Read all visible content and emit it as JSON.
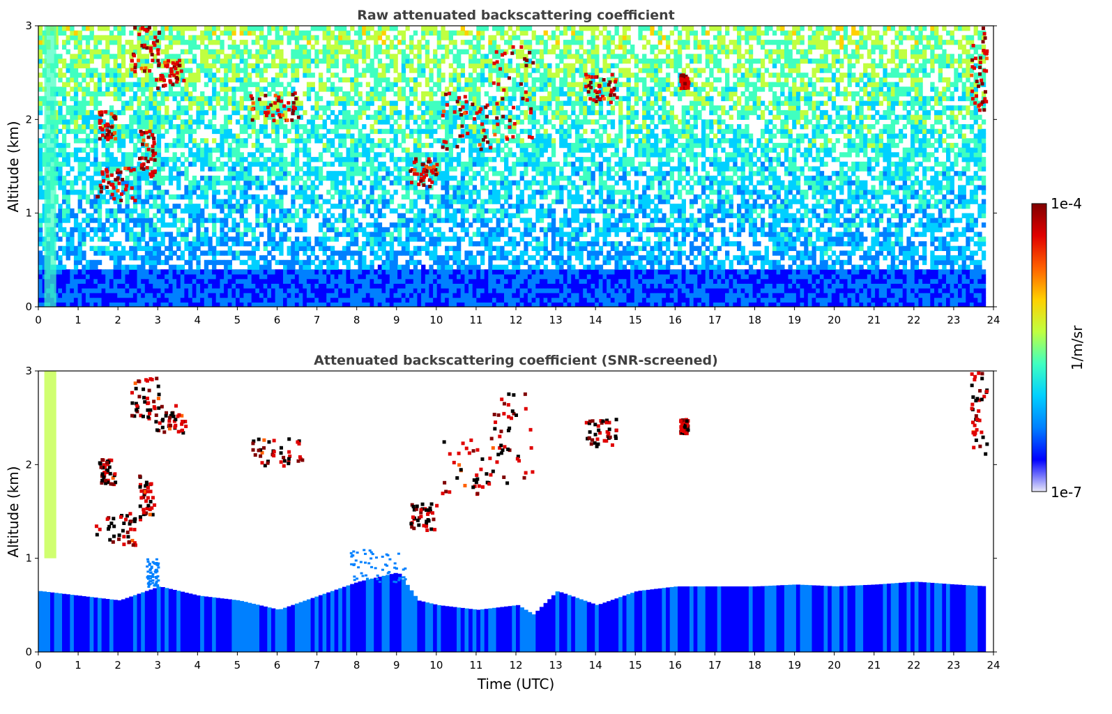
{
  "chart_data": [
    {
      "type": "heatmap",
      "title": "Raw attenuated backscattering coefficient",
      "xlabel": "",
      "ylabel": "Altitude (km)",
      "xlim": [
        0,
        24
      ],
      "ylim": [
        0,
        3
      ],
      "xticks": [
        "0",
        "1",
        "2",
        "3",
        "4",
        "5",
        "6",
        "7",
        "8",
        "9",
        "10",
        "11",
        "12",
        "13",
        "14",
        "15",
        "16",
        "17",
        "18",
        "19",
        "20",
        "21",
        "22",
        "23",
        "24"
      ],
      "yticks": [
        "0",
        "1",
        "2",
        "3"
      ],
      "data_end_hour": 23.8,
      "boundary_layer_top_km": 0.4,
      "cloud_regions": [
        {
          "t": [
            1.4,
            2.4
          ],
          "z": [
            1.15,
            1.5
          ]
        },
        {
          "t": [
            1.5,
            1.9
          ],
          "z": [
            1.8,
            2.1
          ]
        },
        {
          "t": [
            2.3,
            3.0
          ],
          "z": [
            2.5,
            3.0
          ]
        },
        {
          "t": [
            2.9,
            3.7
          ],
          "z": [
            2.35,
            2.65
          ]
        },
        {
          "t": [
            2.5,
            2.9
          ],
          "z": [
            1.4,
            1.9
          ]
        },
        {
          "t": [
            5.3,
            6.6
          ],
          "z": [
            2.0,
            2.3
          ]
        },
        {
          "t": [
            9.3,
            10.0
          ],
          "z": [
            1.3,
            1.6
          ]
        },
        {
          "t": [
            10.1,
            11.4
          ],
          "z": [
            1.7,
            2.3
          ]
        },
        {
          "t": [
            11.4,
            12.4
          ],
          "z": [
            1.8,
            2.8
          ]
        },
        {
          "t": [
            13.7,
            14.5
          ],
          "z": [
            2.2,
            2.5
          ]
        },
        {
          "t": [
            16.1,
            16.3
          ],
          "z": [
            2.35,
            2.5
          ]
        },
        {
          "t": [
            23.4,
            23.8
          ],
          "z": [
            2.1,
            3.0
          ]
        }
      ]
    },
    {
      "type": "heatmap",
      "title": "Attenuated backscattering coefficient (SNR-screened)",
      "xlabel": "Time (UTC)",
      "ylabel": "Altitude (km)",
      "xlim": [
        0,
        24
      ],
      "ylim": [
        0,
        3
      ],
      "xticks": [
        "0",
        "1",
        "2",
        "3",
        "4",
        "5",
        "6",
        "7",
        "8",
        "9",
        "10",
        "11",
        "12",
        "13",
        "14",
        "15",
        "16",
        "17",
        "18",
        "19",
        "20",
        "21",
        "22",
        "23",
        "24"
      ],
      "yticks": [
        "0",
        "1",
        "2",
        "3"
      ],
      "data_end_hour": 23.8,
      "boundary_layer_top_km": [
        [
          0,
          0.65
        ],
        [
          1,
          0.6
        ],
        [
          2,
          0.55
        ],
        [
          3,
          0.7
        ],
        [
          4,
          0.6
        ],
        [
          5,
          0.55
        ],
        [
          6,
          0.45
        ],
        [
          7,
          0.6
        ],
        [
          8,
          0.75
        ],
        [
          9,
          0.85
        ],
        [
          9.5,
          0.55
        ],
        [
          10,
          0.5
        ],
        [
          11,
          0.45
        ],
        [
          12,
          0.5
        ],
        [
          12.4,
          0.4
        ],
        [
          13,
          0.65
        ],
        [
          14,
          0.5
        ],
        [
          15,
          0.65
        ],
        [
          16,
          0.7
        ],
        [
          17,
          0.7
        ],
        [
          18,
          0.7
        ],
        [
          19,
          0.72
        ],
        [
          20,
          0.7
        ],
        [
          21,
          0.72
        ],
        [
          22,
          0.75
        ],
        [
          23,
          0.72
        ],
        [
          23.8,
          0.7
        ]
      ],
      "cloud_regions": [
        {
          "t": [
            1.4,
            2.4
          ],
          "z": [
            1.15,
            1.5
          ]
        },
        {
          "t": [
            1.5,
            1.9
          ],
          "z": [
            1.8,
            2.1
          ]
        },
        {
          "t": [
            2.3,
            3.0
          ],
          "z": [
            2.5,
            3.0
          ]
        },
        {
          "t": [
            2.9,
            3.7
          ],
          "z": [
            2.35,
            2.65
          ]
        },
        {
          "t": [
            2.5,
            2.9
          ],
          "z": [
            1.4,
            1.9
          ]
        },
        {
          "t": [
            5.3,
            6.6
          ],
          "z": [
            2.0,
            2.3
          ]
        },
        {
          "t": [
            9.3,
            10.0
          ],
          "z": [
            1.3,
            1.6
          ]
        },
        {
          "t": [
            10.1,
            11.4
          ],
          "z": [
            1.7,
            2.3
          ]
        },
        {
          "t": [
            11.4,
            12.4
          ],
          "z": [
            1.8,
            2.8
          ]
        },
        {
          "t": [
            13.7,
            14.5
          ],
          "z": [
            2.2,
            2.5
          ]
        },
        {
          "t": [
            16.1,
            16.3
          ],
          "z": [
            2.35,
            2.5
          ]
        },
        {
          "t": [
            23.4,
            23.8
          ],
          "z": [
            2.1,
            3.0
          ]
        }
      ],
      "aerosol_patches": [
        {
          "t": [
            7.8,
            9.2
          ],
          "z": [
            0.75,
            1.1
          ]
        },
        {
          "t": [
            2.7,
            3.0
          ],
          "z": [
            0.7,
            1.0
          ]
        }
      ]
    }
  ],
  "colorbar": {
    "label": "1/m/sr",
    "max_label": "1e-4",
    "min_label": "1e-7",
    "scale": "log",
    "range": [
      1e-07,
      0.0001
    ],
    "colormap": "jet",
    "colors": [
      "#e8e8f8",
      "#0000ff",
      "#0080ff",
      "#00d0ff",
      "#40ffc0",
      "#c0ff40",
      "#ffd000",
      "#ff6000",
      "#e00000",
      "#800000"
    ]
  }
}
